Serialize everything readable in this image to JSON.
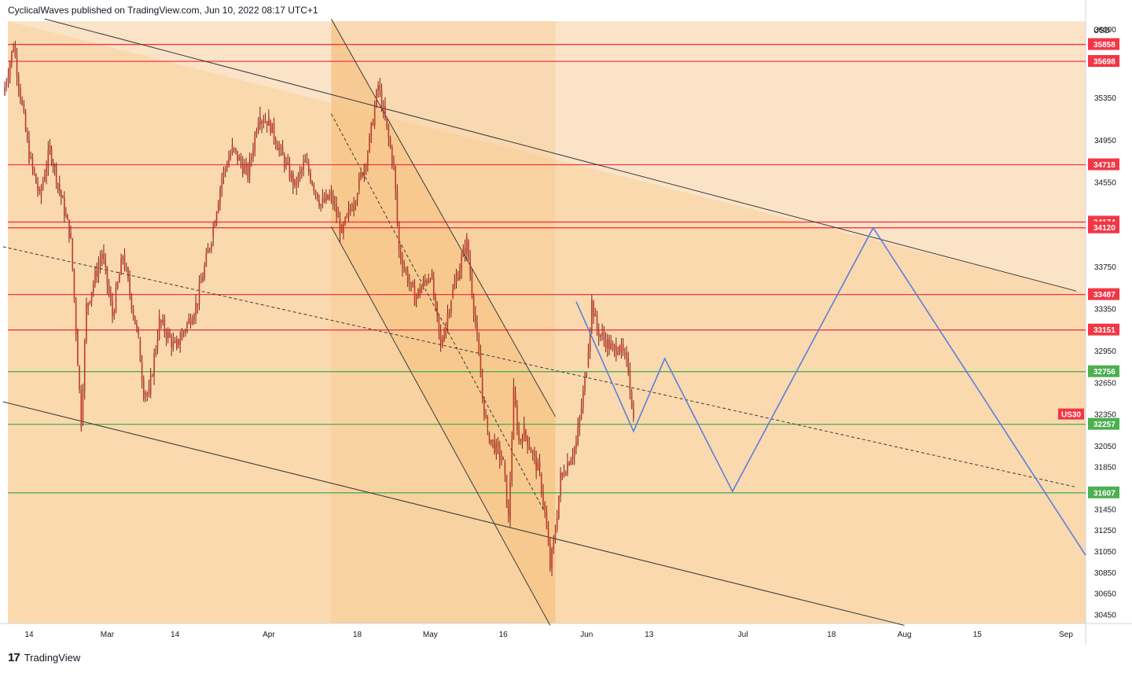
{
  "header": {
    "text": "CyclicalWaves published on TradingView.com, Jun 10, 2022 08:17 UTC+1"
  },
  "footer": {
    "logo": "17",
    "brand": "TradingView"
  },
  "chart_data": {
    "type": "candlestick",
    "instrument": "US30",
    "currency": "USD",
    "ylim": [
      30350,
      36100
    ],
    "y_ticks": [
      30450,
      30650,
      30850,
      31050,
      31250,
      31450,
      31850,
      32050,
      32350,
      32650,
      32950,
      33350,
      33750,
      34550,
      34950,
      35350,
      36000
    ],
    "x_labels": [
      {
        "label": "14",
        "date": "2022-02-14"
      },
      {
        "label": "Mar",
        "date": "2022-03-01"
      },
      {
        "label": "14",
        "date": "2022-03-14"
      },
      {
        "label": "Apr",
        "date": "2022-04-01"
      },
      {
        "label": "18",
        "date": "2022-04-18"
      },
      {
        "label": "May",
        "date": "2022-05-02"
      },
      {
        "label": "16",
        "date": "2022-05-16"
      },
      {
        "label": "Jun",
        "date": "2022-06-01"
      },
      {
        "label": "13",
        "date": "2022-06-13"
      },
      {
        "label": "Jul",
        "date": "2022-07-01"
      },
      {
        "label": "18",
        "date": "2022-07-18"
      },
      {
        "label": "Aug",
        "date": "2022-08-01"
      },
      {
        "label": "15",
        "date": "2022-08-15"
      },
      {
        "label": "Sep",
        "date": "2022-09-01"
      }
    ],
    "last_price_label": "US30",
    "levels": [
      {
        "value": 35858,
        "label": "35858",
        "color": "#f23645"
      },
      {
        "value": 35698,
        "label": "35698",
        "color": "#f23645"
      },
      {
        "value": 34718,
        "label": "34718",
        "color": "#f23645"
      },
      {
        "value": 34174,
        "label": "34174",
        "color": "#f23645"
      },
      {
        "value": 34120,
        "label": "34120",
        "color": "#f23645"
      },
      {
        "value": 33487,
        "label": "33487",
        "color": "#f23645"
      },
      {
        "value": 33151,
        "label": "33151",
        "color": "#f23645"
      },
      {
        "value": 32756,
        "label": "32756",
        "color": "#4caf50"
      },
      {
        "value": 32257,
        "label": "32257",
        "color": "#4caf50"
      },
      {
        "value": 31607,
        "label": "31607",
        "color": "#4caf50"
      }
    ],
    "channel": {
      "upper": [
        [
          "2022-02-17",
          36100
        ],
        [
          "2022-09-03",
          33520
        ]
      ],
      "middle": [
        [
          "2022-02-09",
          33940
        ],
        [
          "2022-09-03",
          31660
        ]
      ],
      "lower": [
        [
          "2022-02-09",
          32470
        ],
        [
          "2022-08-01",
          30350
        ]
      ]
    },
    "steep_channel": {
      "upper": [
        [
          "2022-04-13",
          36100
        ],
        [
          "2022-05-26",
          32330
        ]
      ],
      "middle": [
        [
          "2022-04-13",
          35200
        ],
        [
          "2022-05-24",
          31420
        ]
      ],
      "lower": [
        [
          "2022-04-13",
          34130
        ],
        [
          "2022-05-25",
          30350
        ]
      ]
    },
    "projection": [
      [
        "2022-05-30",
        33420
      ],
      [
        "2022-06-10",
        32190
      ],
      [
        "2022-06-16",
        32880
      ],
      [
        "2022-06-29",
        31620
      ],
      [
        "2022-07-26",
        34120
      ],
      [
        "2022-09-03",
        31150
      ]
    ],
    "colors": {
      "background": "#fbe3c8",
      "channel_fill": "#f9d7aa",
      "steep_fill": "#f7c58a",
      "candle": "#c0392b",
      "projection": "#5b7fd8",
      "resistance": "#f23645",
      "support": "#4caf50",
      "trendline": "#3a3a3a"
    },
    "price_path": [
      [
        "2022-02-09",
        35380
      ],
      [
        "2022-02-11",
        35850
      ],
      [
        "2022-02-14",
        34800
      ],
      [
        "2022-02-16",
        34420
      ],
      [
        "2022-02-18",
        34870
      ],
      [
        "2022-02-22",
        34020
      ],
      [
        "2022-02-23",
        33150
      ],
      [
        "2022-02-24",
        32280
      ],
      [
        "2022-02-25",
        33370
      ],
      [
        "2022-02-28",
        33880
      ],
      [
        "2022-03-02",
        33290
      ],
      [
        "2022-03-04",
        33860
      ],
      [
        "2022-03-07",
        33050
      ],
      [
        "2022-03-08",
        32560
      ],
      [
        "2022-03-09",
        32540
      ],
      [
        "2022-03-11",
        33240
      ],
      [
        "2022-03-14",
        32980
      ],
      [
        "2022-03-16",
        33170
      ],
      [
        "2022-03-18",
        33380
      ],
      [
        "2022-03-21",
        34030
      ],
      [
        "2022-03-23",
        34600
      ],
      [
        "2022-03-25",
        34870
      ],
      [
        "2022-03-28",
        34620
      ],
      [
        "2022-03-30",
        35180
      ],
      [
        "2022-04-01",
        35130
      ],
      [
        "2022-04-04",
        34740
      ],
      [
        "2022-04-06",
        34520
      ],
      [
        "2022-04-08",
        34740
      ],
      [
        "2022-04-11",
        34340
      ],
      [
        "2022-04-13",
        34420
      ],
      [
        "2022-04-15",
        34070
      ],
      [
        "2022-04-18",
        34480
      ],
      [
        "2022-04-20",
        34840
      ],
      [
        "2022-04-22",
        35470
      ],
      [
        "2022-04-25",
        34700
      ],
      [
        "2022-04-26",
        33900
      ],
      [
        "2022-04-28",
        33590
      ],
      [
        "2022-04-29",
        33450
      ],
      [
        "2022-05-02",
        33690
      ],
      [
        "2022-05-04",
        33000
      ],
      [
        "2022-05-06",
        33460
      ],
      [
        "2022-05-09",
        33990
      ],
      [
        "2022-05-11",
        33060
      ],
      [
        "2022-05-12",
        32520
      ],
      [
        "2022-05-13",
        32170
      ],
      [
        "2022-05-16",
        31900
      ],
      [
        "2022-05-17",
        31350
      ],
      [
        "2022-05-18",
        32550
      ],
      [
        "2022-05-19",
        32100
      ],
      [
        "2022-05-20",
        32200
      ],
      [
        "2022-05-23",
        31780
      ],
      [
        "2022-05-24",
        31420
      ],
      [
        "2022-05-25",
        30900
      ],
      [
        "2022-05-26",
        31250
      ],
      [
        "2022-05-27",
        31750
      ],
      [
        "2022-05-30",
        32070
      ],
      [
        "2022-05-31",
        32420
      ],
      [
        "2022-06-01",
        32800
      ],
      [
        "2022-06-02",
        33420
      ],
      [
        "2022-06-03",
        33150
      ],
      [
        "2022-06-06",
        32960
      ],
      [
        "2022-06-07",
        33000
      ],
      [
        "2022-06-08",
        32920
      ],
      [
        "2022-06-09",
        32780
      ],
      [
        "2022-06-10",
        32300
      ]
    ]
  }
}
